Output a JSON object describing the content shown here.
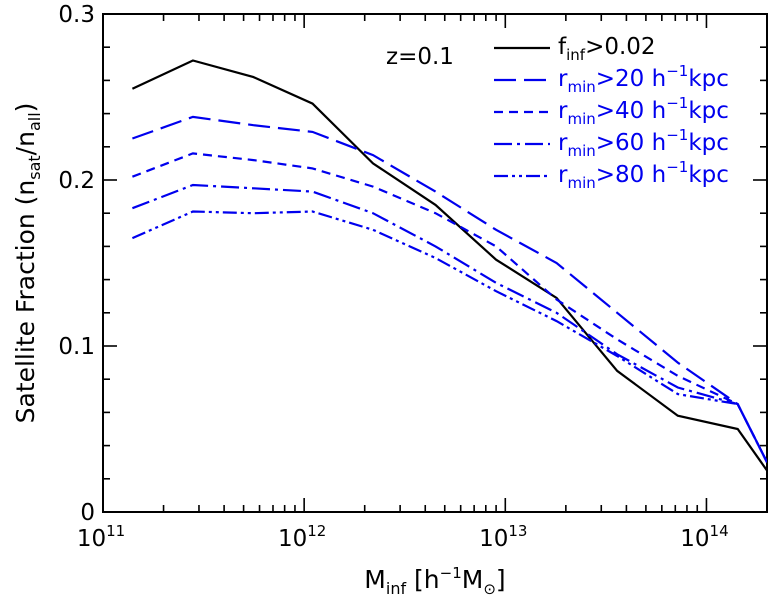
{
  "chart_data": {
    "type": "line",
    "xlabel": {
      "base": "M",
      "sub": "inf",
      "unit_open": " [h",
      "unit_sup": "−1",
      "unit_mid": "M",
      "unit_sym": "⊙",
      "unit_close": "]"
    },
    "ylabel": {
      "base": "Satellite Fraction (n",
      "sub1": "sat",
      "mid": "/n",
      "sub2": "all",
      "close": ")"
    },
    "xscale": "log",
    "xlim": [
      100000000000.0,
      200000000000000.0
    ],
    "ylim": [
      0,
      0.3
    ],
    "xticks": [
      {
        "value": 100000000000.0,
        "base": "10",
        "exp": "11"
      },
      {
        "value": 1000000000000.0,
        "base": "10",
        "exp": "12"
      },
      {
        "value": 10000000000000.0,
        "base": "10",
        "exp": "13"
      },
      {
        "value": 100000000000000.0,
        "base": "10",
        "exp": "14"
      }
    ],
    "yticks": [
      {
        "value": 0,
        "label": "0"
      },
      {
        "value": 0.1,
        "label": "0.1"
      },
      {
        "value": 0.2,
        "label": "0.2"
      },
      {
        "value": 0.3,
        "label": "0.3"
      }
    ],
    "annotation": "z=0.1",
    "legend_position": "top-right",
    "series": [
      {
        "legend": {
          "base": "f",
          "sub": "inf",
          "rest": ">0.02"
        },
        "color": "#000000",
        "dash": "",
        "x": [
          140000000000.0,
          280000000000.0,
          560000000000.0,
          1100000000000.0,
          2200000000000.0,
          4500000000000.0,
          9000000000000.0,
          18000000000000.0,
          36000000000000.0,
          72000000000000.0,
          143000000000000.0,
          200000000000000.0
        ],
        "y": [
          0.255,
          0.272,
          0.262,
          0.246,
          0.21,
          0.185,
          0.152,
          0.129,
          0.085,
          0.058,
          0.05,
          0.025
        ]
      },
      {
        "legend": {
          "base": "r",
          "sub": "min",
          "rest": ">20 h",
          "sup": "−1",
          "tail": "kpc"
        },
        "color": "#0000ee",
        "dash": "22,8",
        "x": [
          140000000000.0,
          280000000000.0,
          560000000000.0,
          1100000000000.0,
          2200000000000.0,
          4500000000000.0,
          9000000000000.0,
          18000000000000.0,
          36000000000000.0,
          72000000000000.0,
          143000000000000.0,
          200000000000000.0
        ],
        "y": [
          0.225,
          0.238,
          0.233,
          0.229,
          0.215,
          0.193,
          0.17,
          0.15,
          0.12,
          0.09,
          0.065,
          0.03
        ]
      },
      {
        "legend": {
          "base": "r",
          "sub": "min",
          "rest": ">40 h",
          "sup": "−1",
          "tail": "kpc"
        },
        "color": "#0000ee",
        "dash": "9,6",
        "x": [
          140000000000.0,
          280000000000.0,
          560000000000.0,
          1100000000000.0,
          2200000000000.0,
          4500000000000.0,
          9000000000000.0,
          18000000000000.0,
          36000000000000.0,
          72000000000000.0,
          143000000000000.0,
          200000000000000.0
        ],
        "y": [
          0.202,
          0.216,
          0.212,
          0.207,
          0.196,
          0.18,
          0.16,
          0.128,
          0.104,
          0.082,
          0.065,
          0.03
        ]
      },
      {
        "legend": {
          "base": "r",
          "sub": "min",
          "rest": ">60 h",
          "sup": "−1",
          "tail": "kpc"
        },
        "color": "#0000ee",
        "dash": "18,5,3,5",
        "x": [
          140000000000.0,
          280000000000.0,
          560000000000.0,
          1100000000000.0,
          2200000000000.0,
          4500000000000.0,
          9000000000000.0,
          18000000000000.0,
          36000000000000.0,
          72000000000000.0,
          143000000000000.0,
          200000000000000.0
        ],
        "y": [
          0.183,
          0.197,
          0.195,
          0.193,
          0.18,
          0.16,
          0.138,
          0.12,
          0.095,
          0.075,
          0.065,
          0.03
        ]
      },
      {
        "legend": {
          "base": "r",
          "sub": "min",
          "rest": ">80 h",
          "sup": "−1",
          "tail": "kpc"
        },
        "color": "#0000ee",
        "dash": "14,4,3,4,3,4",
        "x": [
          140000000000.0,
          280000000000.0,
          560000000000.0,
          1100000000000.0,
          2200000000000.0,
          4500000000000.0,
          9000000000000.0,
          18000000000000.0,
          36000000000000.0,
          72000000000000.0,
          143000000000000.0,
          200000000000000.0
        ],
        "y": [
          0.165,
          0.181,
          0.18,
          0.181,
          0.17,
          0.153,
          0.133,
          0.115,
          0.094,
          0.071,
          0.065,
          0.03
        ]
      }
    ]
  }
}
